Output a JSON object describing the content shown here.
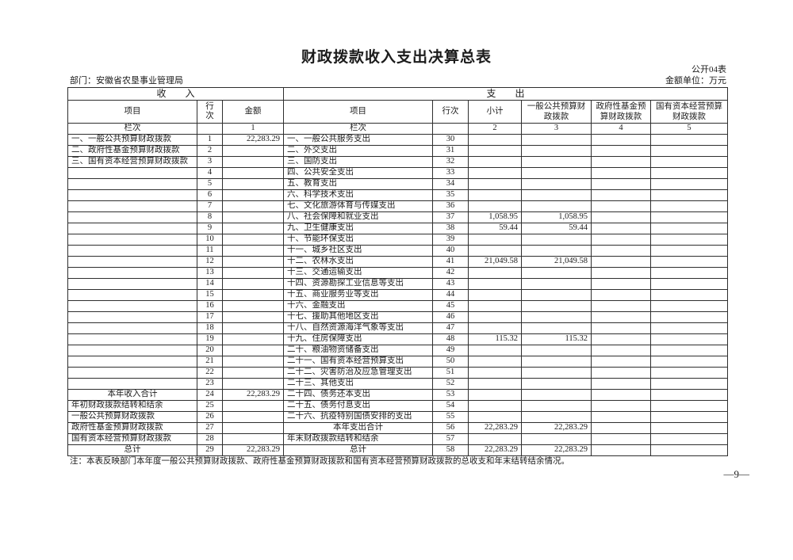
{
  "page": {
    "title": "财政拨款收入支出决算总表",
    "form_code": "公开04表",
    "department_label": "部门：安徽省农垦事业管理局",
    "unit_label": "金额单位：万元",
    "note": "注：本表反映部门本年度一般公共预算财政拨款、政府性基金预算财政拨款和国有资本经营预算财政拨款的总收支和年末结转结余情况。",
    "page_number": "—9—"
  },
  "table": {
    "income_section": "收　　入",
    "expense_section": "支　　出",
    "headers": {
      "item": "项目",
      "line": "行次",
      "amount": "金额",
      "subtotal": "小计",
      "general": "一般公共预算财政拨款",
      "govfund": "政府性基金预算财政拨款",
      "statecap": "国有资本经营预算财政拨款"
    },
    "lanci": {
      "label": "栏次",
      "amount_no": "1",
      "subtotal_no": "2",
      "general_no": "3",
      "govfund_no": "4",
      "statecap_no": "5"
    },
    "rows": [
      {
        "income": {
          "item": "一、一般公共预算财政拨款",
          "line": "1",
          "amount": "22,283.29",
          "style": ""
        },
        "expense": {
          "item": "一、一般公共服务支出",
          "line": "30",
          "subtotal": "",
          "general": "",
          "govfund": "",
          "statecap": "",
          "style": ""
        }
      },
      {
        "income": {
          "item": "二、政府性基金预算财政拨款",
          "line": "2",
          "amount": "",
          "style": ""
        },
        "expense": {
          "item": "二、外交支出",
          "line": "31",
          "subtotal": "",
          "general": "",
          "govfund": "",
          "statecap": "",
          "style": ""
        }
      },
      {
        "income": {
          "item": "三、国有资本经营预算财政拨款",
          "line": "3",
          "amount": "",
          "style": ""
        },
        "expense": {
          "item": "三、国防支出",
          "line": "32",
          "subtotal": "",
          "general": "",
          "govfund": "",
          "statecap": "",
          "style": ""
        }
      },
      {
        "income": {
          "item": "",
          "line": "4",
          "amount": "",
          "style": ""
        },
        "expense": {
          "item": "四、公共安全支出",
          "line": "33",
          "subtotal": "",
          "general": "",
          "govfund": "",
          "statecap": "",
          "style": ""
        }
      },
      {
        "income": {
          "item": "",
          "line": "5",
          "amount": "",
          "style": ""
        },
        "expense": {
          "item": "五、教育支出",
          "line": "34",
          "subtotal": "",
          "general": "",
          "govfund": "",
          "statecap": "",
          "style": ""
        }
      },
      {
        "income": {
          "item": "",
          "line": "6",
          "amount": "",
          "style": ""
        },
        "expense": {
          "item": "六、科学技术支出",
          "line": "35",
          "subtotal": "",
          "general": "",
          "govfund": "",
          "statecap": "",
          "style": ""
        }
      },
      {
        "income": {
          "item": "",
          "line": "7",
          "amount": "",
          "style": ""
        },
        "expense": {
          "item": "七、文化旅游体育与传媒支出",
          "line": "36",
          "subtotal": "",
          "general": "",
          "govfund": "",
          "statecap": "",
          "style": ""
        }
      },
      {
        "income": {
          "item": "",
          "line": "8",
          "amount": "",
          "style": ""
        },
        "expense": {
          "item": "八、社会保障和就业支出",
          "line": "37",
          "subtotal": "1,058.95",
          "general": "1,058.95",
          "govfund": "",
          "statecap": "",
          "style": ""
        }
      },
      {
        "income": {
          "item": "",
          "line": "9",
          "amount": "",
          "style": ""
        },
        "expense": {
          "item": "九、卫生健康支出",
          "line": "38",
          "subtotal": "59.44",
          "general": "59.44",
          "govfund": "",
          "statecap": "",
          "style": ""
        }
      },
      {
        "income": {
          "item": "",
          "line": "10",
          "amount": "",
          "style": ""
        },
        "expense": {
          "item": "十、节能环保支出",
          "line": "39",
          "subtotal": "",
          "general": "",
          "govfund": "",
          "statecap": "",
          "style": ""
        }
      },
      {
        "income": {
          "item": "",
          "line": "11",
          "amount": "",
          "style": ""
        },
        "expense": {
          "item": "十一、城乡社区支出",
          "line": "40",
          "subtotal": "",
          "general": "",
          "govfund": "",
          "statecap": "",
          "style": ""
        }
      },
      {
        "income": {
          "item": "",
          "line": "12",
          "amount": "",
          "style": ""
        },
        "expense": {
          "item": "十二、农林水支出",
          "line": "41",
          "subtotal": "21,049.58",
          "general": "21,049.58",
          "govfund": "",
          "statecap": "",
          "style": ""
        }
      },
      {
        "income": {
          "item": "",
          "line": "13",
          "amount": "",
          "style": ""
        },
        "expense": {
          "item": "十三、交通运输支出",
          "line": "42",
          "subtotal": "",
          "general": "",
          "govfund": "",
          "statecap": "",
          "style": ""
        }
      },
      {
        "income": {
          "item": "",
          "line": "14",
          "amount": "",
          "style": ""
        },
        "expense": {
          "item": "十四、资源勘探工业信息等支出",
          "line": "43",
          "subtotal": "",
          "general": "",
          "govfund": "",
          "statecap": "",
          "style": ""
        }
      },
      {
        "income": {
          "item": "",
          "line": "15",
          "amount": "",
          "style": ""
        },
        "expense": {
          "item": "十五、商业服务业等支出",
          "line": "44",
          "subtotal": "",
          "general": "",
          "govfund": "",
          "statecap": "",
          "style": ""
        }
      },
      {
        "income": {
          "item": "",
          "line": "16",
          "amount": "",
          "style": ""
        },
        "expense": {
          "item": "十六、金融支出",
          "line": "45",
          "subtotal": "",
          "general": "",
          "govfund": "",
          "statecap": "",
          "style": ""
        }
      },
      {
        "income": {
          "item": "",
          "line": "17",
          "amount": "",
          "style": ""
        },
        "expense": {
          "item": "十七、援助其他地区支出",
          "line": "46",
          "subtotal": "",
          "general": "",
          "govfund": "",
          "statecap": "",
          "style": ""
        }
      },
      {
        "income": {
          "item": "",
          "line": "18",
          "amount": "",
          "style": ""
        },
        "expense": {
          "item": "十八、自然资源海洋气象等支出",
          "line": "47",
          "subtotal": "",
          "general": "",
          "govfund": "",
          "statecap": "",
          "style": ""
        }
      },
      {
        "income": {
          "item": "",
          "line": "19",
          "amount": "",
          "style": ""
        },
        "expense": {
          "item": "十九、住房保障支出",
          "line": "48",
          "subtotal": "115.32",
          "general": "115.32",
          "govfund": "",
          "statecap": "",
          "style": ""
        }
      },
      {
        "income": {
          "item": "",
          "line": "20",
          "amount": "",
          "style": ""
        },
        "expense": {
          "item": "二十、粮油物资储备支出",
          "line": "49",
          "subtotal": "",
          "general": "",
          "govfund": "",
          "statecap": "",
          "style": ""
        }
      },
      {
        "income": {
          "item": "",
          "line": "21",
          "amount": "",
          "style": ""
        },
        "expense": {
          "item": "二十一、国有资本经营预算支出",
          "line": "50",
          "subtotal": "",
          "general": "",
          "govfund": "",
          "statecap": "",
          "style": ""
        }
      },
      {
        "income": {
          "item": "",
          "line": "22",
          "amount": "",
          "style": ""
        },
        "expense": {
          "item": "二十二、灾害防治及应急管理支出",
          "line": "51",
          "subtotal": "",
          "general": "",
          "govfund": "",
          "statecap": "",
          "style": ""
        }
      },
      {
        "income": {
          "item": "",
          "line": "23",
          "amount": "",
          "style": ""
        },
        "expense": {
          "item": "二十三、其他支出",
          "line": "52",
          "subtotal": "",
          "general": "",
          "govfund": "",
          "statecap": "",
          "style": ""
        }
      },
      {
        "income": {
          "item": "本年收入合计",
          "line": "24",
          "amount": "22,283.29",
          "style": "total"
        },
        "expense": {
          "item": "二十四、债务还本支出",
          "line": "53",
          "subtotal": "",
          "general": "",
          "govfund": "",
          "statecap": "",
          "style": ""
        }
      },
      {
        "income": {
          "item": "年初财政拨款结转和结余",
          "line": "25",
          "amount": "",
          "style": ""
        },
        "expense": {
          "item": "二十五、债务付息支出",
          "line": "54",
          "subtotal": "",
          "general": "",
          "govfund": "",
          "statecap": "",
          "style": ""
        }
      },
      {
        "income": {
          "item": "一般公共预算财政拨款",
          "line": "26",
          "amount": "",
          "style": "indent"
        },
        "expense": {
          "item": "二十六、抗疫特别国债安排的支出",
          "line": "55",
          "subtotal": "",
          "general": "",
          "govfund": "",
          "statecap": "",
          "style": ""
        }
      },
      {
        "income": {
          "item": "政府性基金预算财政拨款",
          "line": "27",
          "amount": "",
          "style": "indent"
        },
        "expense": {
          "item": "本年支出合计",
          "line": "56",
          "subtotal": "22,283.29",
          "general": "22,283.29",
          "govfund": "",
          "statecap": "",
          "style": "total"
        }
      },
      {
        "income": {
          "item": "国有资本经营预算财政拨款",
          "line": "28",
          "amount": "",
          "style": "indent"
        },
        "expense": {
          "item": "年末财政拨款结转和结余",
          "line": "57",
          "subtotal": "",
          "general": "",
          "govfund": "",
          "statecap": "",
          "style": ""
        }
      },
      {
        "income": {
          "item": "总计",
          "line": "29",
          "amount": "22,283.29",
          "style": "total"
        },
        "expense": {
          "item": "总计",
          "line": "58",
          "subtotal": "22,283.29",
          "general": "22,283.29",
          "govfund": "",
          "statecap": "",
          "style": "total"
        }
      }
    ]
  }
}
